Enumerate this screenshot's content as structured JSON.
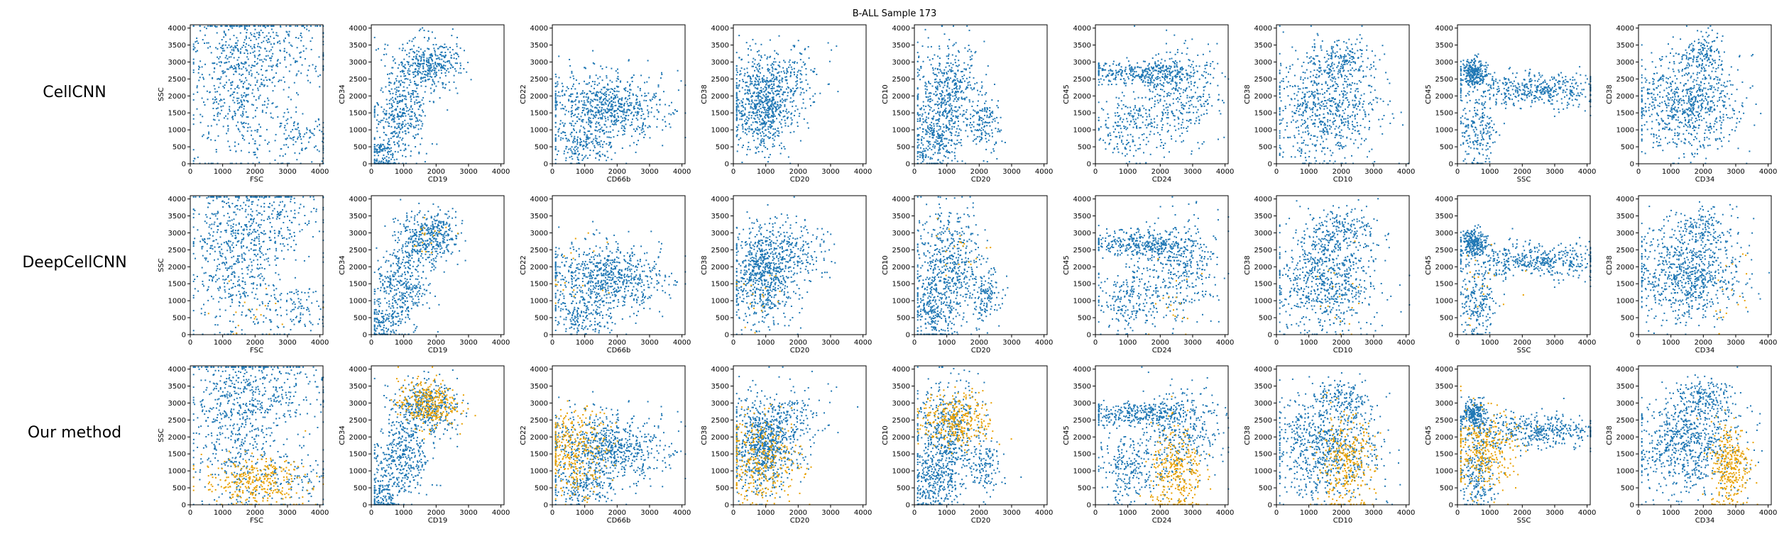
{
  "figure": {
    "title": "B-ALL Sample 173"
  },
  "colors": {
    "background_cells": "#1f77b4",
    "highlighted_cells": "#e8a000"
  },
  "rows": [
    {
      "label": "CellCNN"
    },
    {
      "label": "DeepCellCNN"
    },
    {
      "label": "Our method"
    }
  ],
  "chart_data": {
    "type": "scatter",
    "grid": false,
    "description_axes": "3 rows x 9 columns of scatter panels sharing axes per column",
    "xlim": [
      0,
      4096
    ],
    "ylim": [
      0,
      4096
    ],
    "ticks": [
      "0",
      "500",
      "1000",
      "1500",
      "2000",
      "2500",
      "3000",
      "3500",
      "4000"
    ],
    "x_ticks": [
      "0",
      "1000",
      "2000",
      "3000",
      "4000"
    ],
    "panels": [
      {
        "xlabel": "FSC",
        "ylabel": "SSC",
        "clusters": [
          {
            "cx": 1400,
            "cy": 2200,
            "sx": 700,
            "sy": 1200,
            "w": 5
          },
          {
            "cx": 2300,
            "cy": 3400,
            "sx": 1000,
            "sy": 600,
            "w": 3
          },
          {
            "cx": 3300,
            "cy": 800,
            "sx": 600,
            "sy": 400,
            "w": 1
          }
        ],
        "highlight": {
          "cx": 2000,
          "cy": 700,
          "sx": 800,
          "sy": 350
        }
      },
      {
        "xlabel": "CD19",
        "ylabel": "CD34",
        "clusters": [
          {
            "cx": 1700,
            "cy": 2900,
            "sx": 500,
            "sy": 400,
            "w": 3
          },
          {
            "cx": 900,
            "cy": 1400,
            "sx": 400,
            "sy": 600,
            "w": 3
          },
          {
            "cx": 300,
            "cy": 300,
            "sx": 250,
            "sy": 300,
            "w": 1
          }
        ],
        "highlight": {
          "cx": 1700,
          "cy": 3000,
          "sx": 450,
          "sy": 350
        }
      },
      {
        "xlabel": "CD66b",
        "ylabel": "CD22",
        "clusters": [
          {
            "cx": 1600,
            "cy": 1700,
            "sx": 900,
            "sy": 500,
            "w": 5
          },
          {
            "cx": 900,
            "cy": 500,
            "sx": 500,
            "sy": 250,
            "w": 1
          }
        ],
        "highlight": {
          "cx": 700,
          "cy": 1600,
          "sx": 500,
          "sy": 600
        }
      },
      {
        "xlabel": "CD20",
        "ylabel": "CD38",
        "clusters": [
          {
            "cx": 900,
            "cy": 1800,
            "sx": 500,
            "sy": 700,
            "w": 5
          },
          {
            "cx": 1900,
            "cy": 2500,
            "sx": 500,
            "sy": 500,
            "w": 1
          }
        ],
        "highlight": {
          "cx": 900,
          "cy": 1300,
          "sx": 600,
          "sy": 650
        }
      },
      {
        "xlabel": "CD20",
        "ylabel": "CD10",
        "clusters": [
          {
            "cx": 1000,
            "cy": 2100,
            "sx": 500,
            "sy": 800,
            "w": 4
          },
          {
            "cx": 600,
            "cy": 700,
            "sx": 400,
            "sy": 500,
            "w": 2
          },
          {
            "cx": 2200,
            "cy": 1200,
            "sx": 250,
            "sy": 400,
            "w": 1
          }
        ],
        "highlight": {
          "cx": 1300,
          "cy": 2500,
          "sx": 550,
          "sy": 400
        }
      },
      {
        "xlabel": "CD24",
        "ylabel": "CD45",
        "clusters": [
          {
            "cx": 1400,
            "cy": 2700,
            "sx": 900,
            "sy": 180,
            "w": 3
          },
          {
            "cx": 2600,
            "cy": 2000,
            "sx": 600,
            "sy": 700,
            "w": 3
          },
          {
            "cx": 1000,
            "cy": 1100,
            "sx": 500,
            "sy": 500,
            "w": 2
          }
        ],
        "highlight": {
          "cx": 2500,
          "cy": 900,
          "sx": 400,
          "sy": 700
        }
      },
      {
        "xlabel": "CD10",
        "ylabel": "CD38",
        "clusters": [
          {
            "cx": 1500,
            "cy": 1700,
            "sx": 800,
            "sy": 800,
            "w": 5
          },
          {
            "cx": 2000,
            "cy": 3100,
            "sx": 500,
            "sy": 300,
            "w": 1
          }
        ],
        "highlight": {
          "cx": 2100,
          "cy": 1200,
          "sx": 450,
          "sy": 700
        }
      },
      {
        "xlabel": "SSC",
        "ylabel": "CD45",
        "clusters": [
          {
            "cx": 500,
            "cy": 2700,
            "sx": 200,
            "sy": 200,
            "w": 2
          },
          {
            "cx": 2300,
            "cy": 2200,
            "sx": 1100,
            "sy": 250,
            "w": 4
          },
          {
            "cx": 600,
            "cy": 1000,
            "sx": 300,
            "sy": 600,
            "w": 2
          }
        ],
        "highlight": {
          "cx": 800,
          "cy": 1600,
          "sx": 500,
          "sy": 600
        }
      },
      {
        "xlabel": "CD34",
        "ylabel": "CD38",
        "clusters": [
          {
            "cx": 1500,
            "cy": 1800,
            "sx": 800,
            "sy": 700,
            "w": 5
          },
          {
            "cx": 2000,
            "cy": 3200,
            "sx": 400,
            "sy": 300,
            "w": 1
          }
        ],
        "highlight": {
          "cx": 2800,
          "cy": 1200,
          "sx": 300,
          "sy": 650
        }
      }
    ],
    "highlight_share_by_row": [
      0.0,
      0.02,
      0.35
    ]
  }
}
